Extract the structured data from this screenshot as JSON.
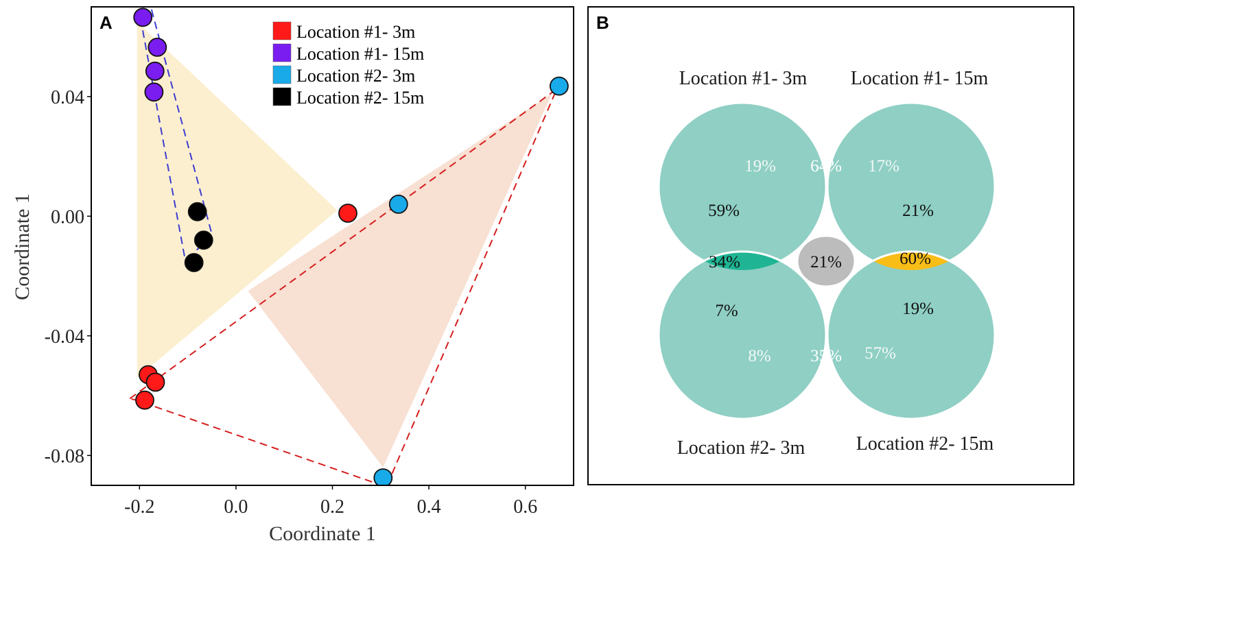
{
  "chart_data": [
    {
      "type": "scatter",
      "panel": "A",
      "xlabel": "Coordinate 1",
      "ylabel": "Coordinate 1",
      "xlim": [
        -0.3,
        0.7
      ],
      "ylim": [
        -0.09,
        0.07
      ],
      "xticks": [
        -0.2,
        0.0,
        0.2,
        0.4,
        0.6
      ],
      "xtick_labels": [
        "-0.2",
        "0.0",
        "0.2",
        "0.4",
        "0.6"
      ],
      "yticks": [
        0.04,
        0.0,
        -0.04,
        -0.08
      ],
      "ytick_labels": [
        "0.04",
        "0.00",
        "-0.04",
        "-0.08"
      ],
      "legend_position": "top",
      "series": [
        {
          "name": "Location #1- 3m",
          "color": "#ff1a1a",
          "points": [
            [
              0.232,
              0.001
            ],
            [
              -0.182,
              -0.053
            ],
            [
              -0.167,
              -0.0555
            ],
            [
              -0.189,
              -0.0615
            ]
          ]
        },
        {
          "name": "Location #1- 15m",
          "color": "#7a1df0",
          "points": [
            [
              -0.193,
              0.0665
            ],
            [
              -0.163,
              0.0565
            ],
            [
              -0.168,
              0.0485
            ],
            [
              -0.17,
              0.0415
            ]
          ]
        },
        {
          "name": "Location #2- 3m",
          "color": "#19aaea",
          "points": [
            [
              0.67,
              0.0435
            ],
            [
              0.337,
              0.004
            ],
            [
              0.305,
              -0.0875
            ]
          ]
        },
        {
          "name": "Location #2- 15m",
          "color": "#000000",
          "points": [
            [
              -0.08,
              0.0015
            ],
            [
              -0.067,
              -0.008
            ],
            [
              -0.087,
              -0.0155
            ]
          ]
        }
      ],
      "hulls": [
        {
          "group": "Location #1- 3m",
          "style": "shaded",
          "color": "#fcefcf",
          "vertices": [
            [
              -0.205,
              0.065
            ],
            [
              0.21,
              0.002
            ],
            [
              -0.205,
              -0.054
            ]
          ]
        },
        {
          "group": "Location #2- 3m",
          "style": "shaded",
          "color": "#f8e0d2",
          "vertices": [
            [
              0.655,
              0.041
            ],
            [
              0.025,
              -0.025
            ],
            [
              0.305,
              -0.084
            ]
          ]
        },
        {
          "group": "Location #1- 15m",
          "style": "dashed",
          "color": "#3b3bd0",
          "vertices": [
            [
              -0.2,
              0.068
            ],
            [
              -0.175,
              0.069
            ],
            [
              -0.05,
              -0.006
            ],
            [
              -0.097,
              -0.014
            ],
            [
              -0.106,
              -0.014
            ]
          ]
        },
        {
          "group": "Location #1- 3m",
          "style": "dashed",
          "color": "#d61e1e",
          "vertices": [
            [
              -0.22,
              -0.061
            ],
            [
              0.665,
              0.0425
            ],
            [
              0.312,
              -0.0905
            ],
            [
              -0.207,
              -0.0615
            ]
          ]
        }
      ]
    },
    {
      "type": "venn",
      "panel": "B",
      "sets": [
        "Location #1- 3m",
        "Location #1- 15m",
        "Location #2- 3m",
        "Location #2- 15m"
      ],
      "region_values": {
        "loc1_3m_outer": "19%",
        "loc1_3m_inner": "59%",
        "loc1_3m_loc1_15m_overlap": "64%",
        "loc1_15m_outer": "17%",
        "loc1_15m_inner": "21%",
        "loc1_3m_loc2_3m_overlap": "34%",
        "center_all": "21%",
        "loc1_15m_loc2_15m_overlap": "60%",
        "loc2_3m_inner": "7%",
        "loc2_3m_outer": "8%",
        "loc2_3m_loc2_15m_overlap": "35%",
        "loc2_15m_inner": "19%",
        "loc2_15m_outer": "57%"
      },
      "colors": {
        "circle": "#8fcfc4",
        "top_overlap": "#73529a",
        "left_overlap": "#1fb594",
        "right_overlap": "#f8bd17",
        "bottom_overlap": "#ec7a31",
        "center": "#bcbcbc"
      }
    }
  ],
  "panel_labels": {
    "a": "A",
    "b": "B"
  }
}
